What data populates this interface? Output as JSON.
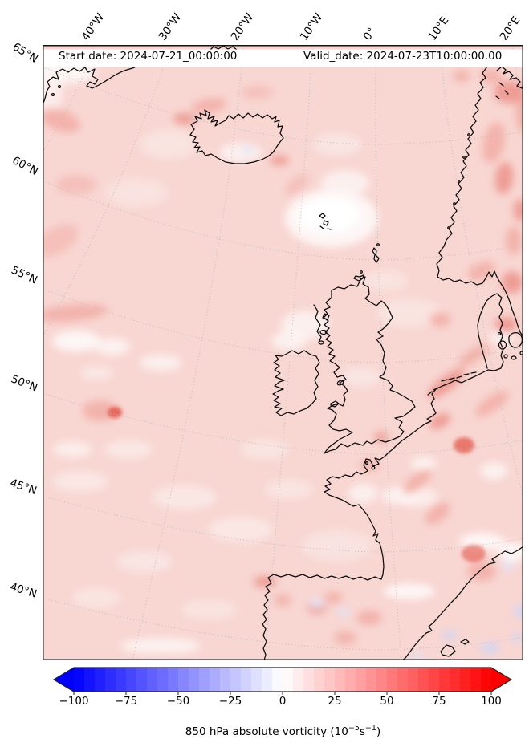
{
  "header": {
    "start_date": "Start date: 2024-07-21_00:00:00",
    "valid_date": "Valid_date: 2024-07-23T10:00:00.00"
  },
  "axes": {
    "top_ticks": [
      "40°W",
      "30°W",
      "20°W",
      "10°W",
      "0°",
      "10°E",
      "20°E"
    ],
    "left_ticks": [
      "65°N",
      "60°N",
      "55°N",
      "50°N",
      "45°N",
      "40°N"
    ]
  },
  "colorbar": {
    "min": -100,
    "max": 100,
    "step": 5,
    "tick_labels": [
      "−100",
      "−75",
      "−50",
      "−25",
      "0",
      "25",
      "50",
      "75",
      "100"
    ],
    "colormap": "blue-white-red",
    "min_color": "#0000ff",
    "mid_color": "#ffffff",
    "max_color": "#ff0000"
  },
  "caption": {
    "prefix": "850 hPa absolute vorticity (10",
    "exp1": "−5",
    "unit": "s",
    "exp2": "−1",
    "suffix": ")"
  },
  "map_style": {
    "base_color": "#f8d6d2",
    "coast_color": "#0a0a0a",
    "grid_color": "#bbbbbb"
  }
}
